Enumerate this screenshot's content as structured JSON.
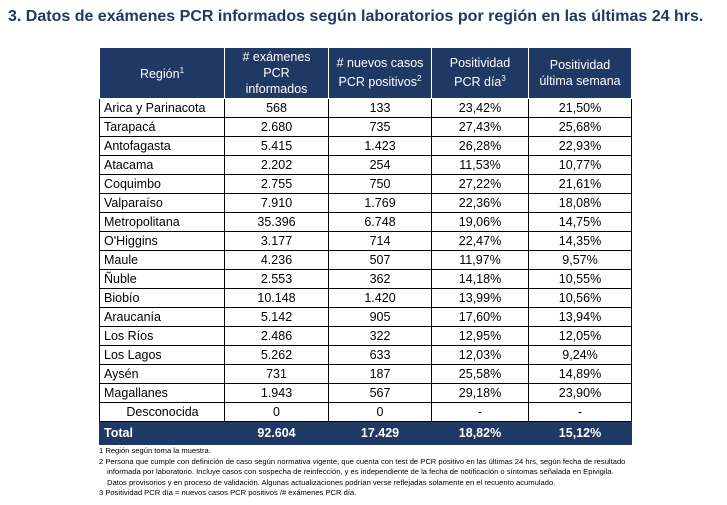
{
  "title": "3.  Datos de exámenes PCR informados según laboratorios por región en las últimas 24 hrs.",
  "table": {
    "headers": [
      {
        "line1": "Región",
        "sup": "1",
        "line2": ""
      },
      {
        "line1": "# exámenes PCR",
        "sup": "",
        "line2": "informados"
      },
      {
        "line1": "# nuevos casos",
        "sup": "2",
        "line2": "PCR positivos"
      },
      {
        "line1": "Positividad",
        "sup": "3",
        "line2": "PCR día"
      },
      {
        "line1": "Positividad",
        "sup": "",
        "line2": "última semana"
      }
    ],
    "rows": [
      [
        "Arica y Parinacota",
        "568",
        "133",
        "23,42%",
        "21,50%"
      ],
      [
        "Tarapacá",
        "2.680",
        "735",
        "27,43%",
        "25,68%"
      ],
      [
        "Antofagasta",
        "5.415",
        "1.423",
        "26,28%",
        "22,93%"
      ],
      [
        "Atacama",
        "2.202",
        "254",
        "11,53%",
        "10,77%"
      ],
      [
        "Coquimbo",
        "2.755",
        "750",
        "27,22%",
        "21,61%"
      ],
      [
        "Valparaíso",
        "7.910",
        "1.769",
        "22,36%",
        "18,08%"
      ],
      [
        "Metropolitana",
        "35.396",
        "6.748",
        "19,06%",
        "14,75%"
      ],
      [
        "O'Higgins",
        "3.177",
        "714",
        "22,47%",
        "14,35%"
      ],
      [
        "Maule",
        "4.236",
        "507",
        "11,97%",
        "9,57%"
      ],
      [
        "Ñuble",
        "2.553",
        "362",
        "14,18%",
        "10,55%"
      ],
      [
        "Biobío",
        "10.148",
        "1.420",
        "13,99%",
        "10,56%"
      ],
      [
        "Araucanía",
        "5.142",
        "905",
        "17,60%",
        "13,94%"
      ],
      [
        "Los Ríos",
        "2.486",
        "322",
        "12,95%",
        "12,05%"
      ],
      [
        "Los Lagos",
        "5.262",
        "633",
        "12,03%",
        "9,24%"
      ],
      [
        "Aysén",
        "731",
        "187",
        "25,58%",
        "14,89%"
      ],
      [
        "Magallanes",
        "1.943",
        "567",
        "29,18%",
        "23,90%"
      ],
      [
        "Desconocida",
        "0",
        "0",
        "-",
        "-"
      ]
    ],
    "total": [
      "Total",
      "92.604",
      "17.429",
      "18,82%",
      "15,12%"
    ]
  },
  "notes": [
    "1 Región según toma la muestra.",
    "2 Persona que cumple con definición de caso según normativa vigente, que cuenta con test de PCR positivo en las últimas 24 hrs, según fecha de resultado",
    "informada por laboratorio. Incluye casos con sospecha de reinfección, y es independiente de la fecha de notificación o síntomas señalada en Epivigila.",
    "Datos provisorios y en proceso de validación. Algunas actualizaciones podrían verse reflejadas solamente en el recuento acumulado.",
    "3 Positividad PCR día = nuevos casos PCR positivos /# exámenes PCR día."
  ]
}
